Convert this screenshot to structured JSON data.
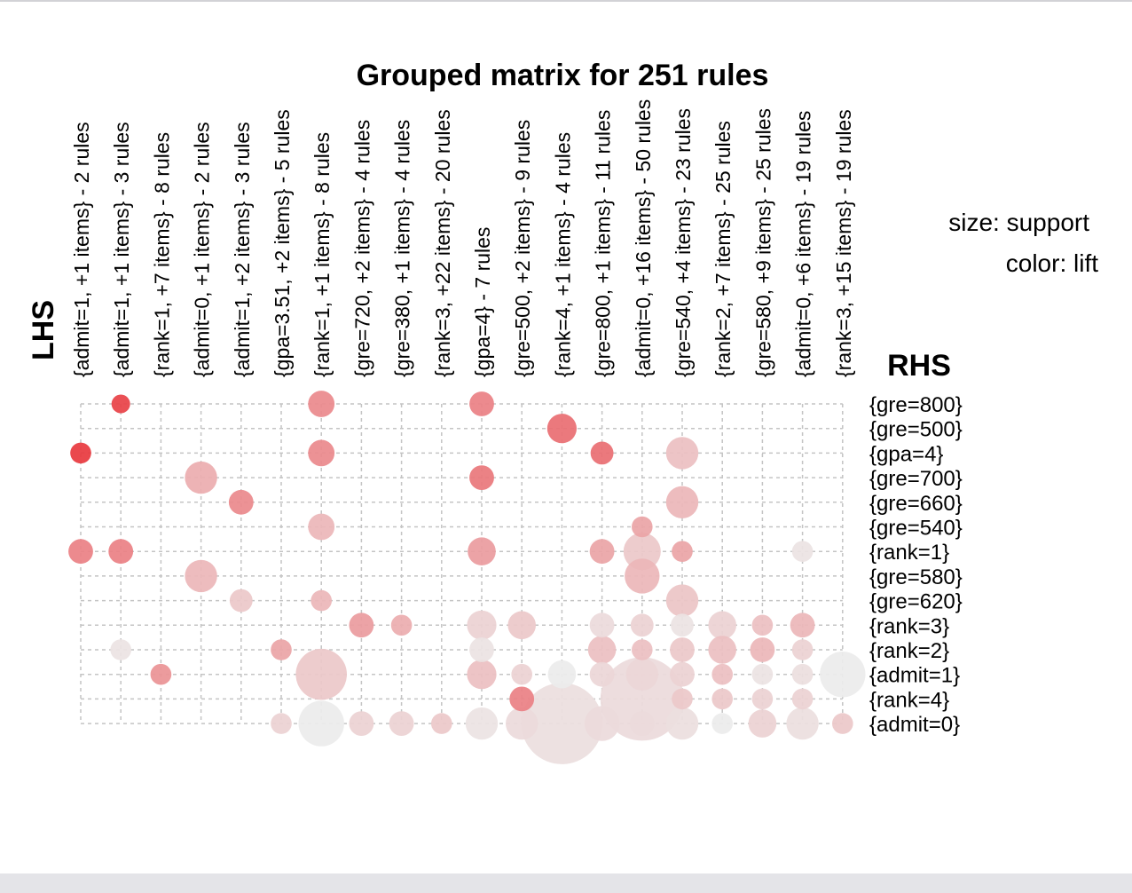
{
  "chart_data": {
    "type": "grouped-matrix",
    "title": "Grouped matrix for 251 rules",
    "lhs_label": "LHS",
    "rhs_label": "RHS",
    "size_legend": "size: support",
    "color_legend": "color: lift",
    "columns": [
      "{admit=1, +1 items} - 2 rules",
      "{admit=1, +1 items} - 3 rules",
      "{rank=1, +7 items} - 8 rules",
      "{admit=0, +1 items} - 2 rules",
      "{admit=1, +2 items} - 3 rules",
      "{gpa=3.51, +2 items} - 5 rules",
      "{rank=1, +1 items} - 8 rules",
      "{gre=720, +2 items} - 4 rules",
      "{gre=380, +1 items} - 4 rules",
      "{rank=3, +22 items} - 20 rules",
      "{gpa=4} - 7 rules",
      "{gre=500, +2 items} - 9 rules",
      "{rank=4, +1 items} - 4 rules",
      "{gre=800, +1 items} - 11 rules",
      "{admit=0, +16 items} - 50 rules",
      "{gre=540, +4 items} - 23 rules",
      "{rank=2, +7 items} - 25 rules",
      "{gre=580, +9 items} - 25 rules",
      "{admit=0, +6 items} - 19 rules",
      "{rank=3, +15 items} - 19 rules"
    ],
    "rows": [
      "{gre=800}",
      "{gre=500}",
      "{gpa=4}",
      "{gre=700}",
      "{gre=660}",
      "{gre=540}",
      "{rank=1}",
      "{gre=580}",
      "{gre=620}",
      "{rank=3}",
      "{rank=2}",
      "{admit=1}",
      "{rank=4}",
      "{admit=0}"
    ],
    "points": [
      {
        "col": 1,
        "row": 0,
        "support": 0.02,
        "lift": 0.95
      },
      {
        "col": 6,
        "row": 0,
        "support": 0.04,
        "lift": 0.55
      },
      {
        "col": 10,
        "row": 0,
        "support": 0.035,
        "lift": 0.6
      },
      {
        "col": 12,
        "row": 1,
        "support": 0.05,
        "lift": 0.7
      },
      {
        "col": 0,
        "row": 2,
        "support": 0.025,
        "lift": 1.0
      },
      {
        "col": 6,
        "row": 2,
        "support": 0.04,
        "lift": 0.55
      },
      {
        "col": 13,
        "row": 2,
        "support": 0.03,
        "lift": 0.7
      },
      {
        "col": 15,
        "row": 2,
        "support": 0.06,
        "lift": 0.25
      },
      {
        "col": 3,
        "row": 3,
        "support": 0.06,
        "lift": 0.35
      },
      {
        "col": 10,
        "row": 3,
        "support": 0.035,
        "lift": 0.65
      },
      {
        "col": 4,
        "row": 4,
        "support": 0.035,
        "lift": 0.55
      },
      {
        "col": 15,
        "row": 4,
        "support": 0.06,
        "lift": 0.3
      },
      {
        "col": 6,
        "row": 5,
        "support": 0.04,
        "lift": 0.3
      },
      {
        "col": 14,
        "row": 5,
        "support": 0.025,
        "lift": 0.4
      },
      {
        "col": 0,
        "row": 6,
        "support": 0.035,
        "lift": 0.6
      },
      {
        "col": 1,
        "row": 6,
        "support": 0.035,
        "lift": 0.6
      },
      {
        "col": 10,
        "row": 6,
        "support": 0.045,
        "lift": 0.45
      },
      {
        "col": 13,
        "row": 6,
        "support": 0.035,
        "lift": 0.4
      },
      {
        "col": 14,
        "row": 6,
        "support": 0.08,
        "lift": 0.2
      },
      {
        "col": 15,
        "row": 6,
        "support": 0.025,
        "lift": 0.4
      },
      {
        "col": 18,
        "row": 6,
        "support": 0.025,
        "lift": 0.05
      },
      {
        "col": 3,
        "row": 7,
        "support": 0.06,
        "lift": 0.3
      },
      {
        "col": 14,
        "row": 7,
        "support": 0.07,
        "lift": 0.3
      },
      {
        "col": 4,
        "row": 8,
        "support": 0.03,
        "lift": 0.2
      },
      {
        "col": 6,
        "row": 8,
        "support": 0.025,
        "lift": 0.3
      },
      {
        "col": 15,
        "row": 8,
        "support": 0.06,
        "lift": 0.22
      },
      {
        "col": 7,
        "row": 9,
        "support": 0.035,
        "lift": 0.45
      },
      {
        "col": 8,
        "row": 9,
        "support": 0.025,
        "lift": 0.35
      },
      {
        "col": 10,
        "row": 9,
        "support": 0.05,
        "lift": 0.15
      },
      {
        "col": 11,
        "row": 9,
        "support": 0.045,
        "lift": 0.2
      },
      {
        "col": 13,
        "row": 9,
        "support": 0.035,
        "lift": 0.1
      },
      {
        "col": 14,
        "row": 9,
        "support": 0.03,
        "lift": 0.15
      },
      {
        "col": 15,
        "row": 9,
        "support": 0.03,
        "lift": 0.05
      },
      {
        "col": 16,
        "row": 9,
        "support": 0.045,
        "lift": 0.15
      },
      {
        "col": 17,
        "row": 9,
        "support": 0.025,
        "lift": 0.25
      },
      {
        "col": 18,
        "row": 9,
        "support": 0.035,
        "lift": 0.3
      },
      {
        "col": 1,
        "row": 10,
        "support": 0.025,
        "lift": 0.05
      },
      {
        "col": 5,
        "row": 10,
        "support": 0.025,
        "lift": 0.4
      },
      {
        "col": 10,
        "row": 10,
        "support": 0.035,
        "lift": 0.05
      },
      {
        "col": 13,
        "row": 10,
        "support": 0.045,
        "lift": 0.25
      },
      {
        "col": 14,
        "row": 10,
        "support": 0.025,
        "lift": 0.25
      },
      {
        "col": 15,
        "row": 10,
        "support": 0.035,
        "lift": 0.2
      },
      {
        "col": 16,
        "row": 10,
        "support": 0.045,
        "lift": 0.25
      },
      {
        "col": 17,
        "row": 10,
        "support": 0.035,
        "lift": 0.3
      },
      {
        "col": 18,
        "row": 10,
        "support": 0.025,
        "lift": 0.15
      },
      {
        "col": 2,
        "row": 11,
        "support": 0.025,
        "lift": 0.5
      },
      {
        "col": 6,
        "row": 11,
        "support": 0.15,
        "lift": 0.2
      },
      {
        "col": 10,
        "row": 11,
        "support": 0.05,
        "lift": 0.25
      },
      {
        "col": 11,
        "row": 11,
        "support": 0.025,
        "lift": 0.15
      },
      {
        "col": 12,
        "row": 11,
        "support": 0.045,
        "lift": 0.0
      },
      {
        "col": 13,
        "row": 11,
        "support": 0.035,
        "lift": 0.12
      },
      {
        "col": 14,
        "row": 11,
        "support": 0.06,
        "lift": 0.12
      },
      {
        "col": 15,
        "row": 11,
        "support": 0.035,
        "lift": 0.15
      },
      {
        "col": 16,
        "row": 11,
        "support": 0.025,
        "lift": 0.25
      },
      {
        "col": 17,
        "row": 11,
        "support": 0.025,
        "lift": 0.05
      },
      {
        "col": 18,
        "row": 11,
        "support": 0.025,
        "lift": 0.08
      },
      {
        "col": 19,
        "row": 11,
        "support": 0.12,
        "lift": 0.0
      },
      {
        "col": 11,
        "row": 12,
        "support": 0.035,
        "lift": 0.6
      },
      {
        "col": 14,
        "row": 12,
        "support": 0.4,
        "lift": 0.1
      },
      {
        "col": 15,
        "row": 12,
        "support": 0.025,
        "lift": 0.2
      },
      {
        "col": 16,
        "row": 12,
        "support": 0.025,
        "lift": 0.2
      },
      {
        "col": 17,
        "row": 12,
        "support": 0.025,
        "lift": 0.15
      },
      {
        "col": 18,
        "row": 12,
        "support": 0.025,
        "lift": 0.15
      },
      {
        "col": 5,
        "row": 13,
        "support": 0.025,
        "lift": 0.15
      },
      {
        "col": 6,
        "row": 13,
        "support": 0.12,
        "lift": 0.0
      },
      {
        "col": 7,
        "row": 13,
        "support": 0.035,
        "lift": 0.15
      },
      {
        "col": 8,
        "row": 13,
        "support": 0.035,
        "lift": 0.15
      },
      {
        "col": 9,
        "row": 13,
        "support": 0.025,
        "lift": 0.2
      },
      {
        "col": 10,
        "row": 13,
        "support": 0.06,
        "lift": 0.05
      },
      {
        "col": 11,
        "row": 13,
        "support": 0.06,
        "lift": 0.1
      },
      {
        "col": 12,
        "row": 13,
        "support": 0.38,
        "lift": 0.08
      },
      {
        "col": 13,
        "row": 13,
        "support": 0.07,
        "lift": 0.1
      },
      {
        "col": 14,
        "row": 13,
        "support": 0.035,
        "lift": 0.1
      },
      {
        "col": 15,
        "row": 13,
        "support": 0.06,
        "lift": 0.08
      },
      {
        "col": 16,
        "row": 13,
        "support": 0.025,
        "lift": 0.0
      },
      {
        "col": 17,
        "row": 13,
        "support": 0.045,
        "lift": 0.15
      },
      {
        "col": 18,
        "row": 13,
        "support": 0.06,
        "lift": 0.08
      },
      {
        "col": 19,
        "row": 13,
        "support": 0.025,
        "lift": 0.2
      }
    ]
  }
}
